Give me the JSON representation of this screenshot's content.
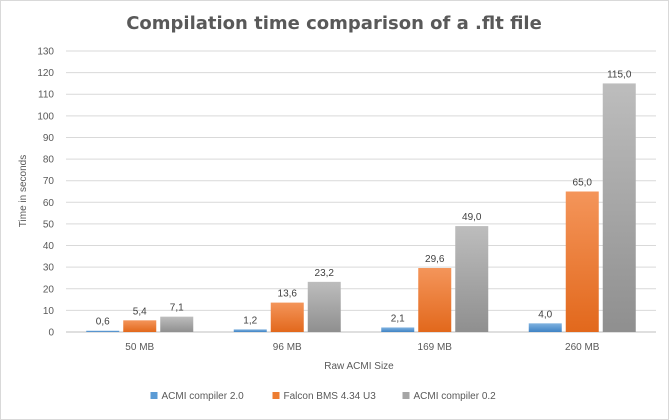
{
  "chart_data": {
    "type": "bar",
    "title": "Compilation time comparison of a .flt file",
    "xlabel": "Raw ACMI Size",
    "ylabel": "Time in seconds",
    "categories": [
      "50 MB",
      "96 MB",
      "169 MB",
      "260 MB"
    ],
    "ylim": [
      0,
      130
    ],
    "yticks": [
      0,
      10,
      20,
      30,
      40,
      50,
      60,
      70,
      80,
      90,
      100,
      110,
      120,
      130
    ],
    "grid": true,
    "legend_position": "bottom",
    "series": [
      {
        "name": "ACMI compiler 2.0",
        "color": "#5b9bd5",
        "values": [
          0.6,
          1.2,
          2.1,
          4.0
        ],
        "labels": [
          "0,6",
          "1,2",
          "2,1",
          "4,0"
        ]
      },
      {
        "name": "Falcon BMS 4.34 U3",
        "color": "#ed7d31",
        "values": [
          5.4,
          13.6,
          29.6,
          65.0
        ],
        "labels": [
          "5,4",
          "13,6",
          "29,6",
          "65,0"
        ]
      },
      {
        "name": "ACMI compiler 0.2",
        "color": "#a5a5a5",
        "values": [
          7.1,
          23.2,
          49.0,
          115.0
        ],
        "labels": [
          "7,1",
          "23,2",
          "49,0",
          "115,0"
        ]
      }
    ]
  }
}
